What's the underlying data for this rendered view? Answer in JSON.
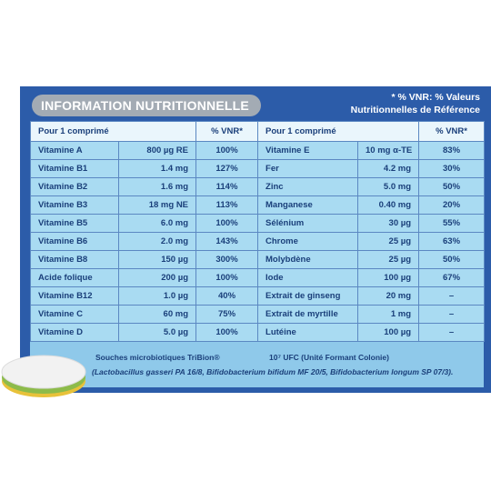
{
  "header": {
    "title": "INFORMATION NUTRITIONNELLE",
    "note_line1": "* % VNR: % Valeurs",
    "note_line2": "Nutritionnelles de Référence"
  },
  "table": {
    "header": [
      "Pour 1 comprimé",
      "% VNR*",
      "Pour 1 comprimé",
      "% VNR*"
    ],
    "rows": [
      [
        "Vitamine A",
        "800 µg RE",
        "100%",
        "Vitamine E",
        "10 mg α-TE",
        "83%"
      ],
      [
        "Vitamine B1",
        "1.4 mg",
        "127%",
        "Fer",
        "4.2 mg",
        "30%"
      ],
      [
        "Vitamine B2",
        "1.6 mg",
        "114%",
        "Zinc",
        "5.0 mg",
        "50%"
      ],
      [
        "Vitamine B3",
        "18 mg NE",
        "113%",
        "Manganese",
        "0.40 mg",
        "20%"
      ],
      [
        "Vitamine B5",
        "6.0 mg",
        "100%",
        "Sélénium",
        "30 µg",
        "55%"
      ],
      [
        "Vitamine B6",
        "2.0 mg",
        "143%",
        "Chrome",
        "25 µg",
        "63%"
      ],
      [
        "Vitamine B8",
        "150 µg",
        "300%",
        "Molybdène",
        "25 µg",
        "50%"
      ],
      [
        "Acide folique",
        "200 µg",
        "100%",
        "Iode",
        "100 µg",
        "67%"
      ],
      [
        "Vitamine B12",
        "1.0 µg",
        "40%",
        "Extrait de ginseng",
        "20 mg",
        "–"
      ],
      [
        "Vitamine C",
        "60 mg",
        "75%",
        "Extrait de myrtille",
        "1 mg",
        "–"
      ],
      [
        "Vitamine D",
        "5.0 µg",
        "100%",
        "Lutéine",
        "100 µg",
        "–"
      ]
    ]
  },
  "footer": {
    "strain": "Souches microbiotiques TriBion®",
    "count": "10⁷ UFC (Unité Formant Colonie)",
    "species": "(Lactobacillus gasseri PA 16/8, Bifidobacterium bifidum MF 20/5, Bifidobacterium longum SP 07/3)."
  }
}
